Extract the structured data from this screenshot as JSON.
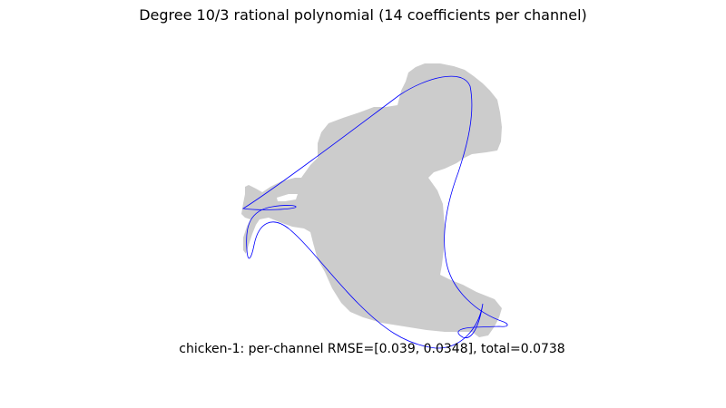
{
  "title": "Degree 10/3 rational polynomial (14 coefficients per channel)",
  "caption": "chicken-1: per-channel RMSE=[0.039, 0.0348], total=0.0738",
  "colors": {
    "silhouette": "#cccccc",
    "fit_curve": "#0000ff",
    "background": "#ffffff"
  }
}
